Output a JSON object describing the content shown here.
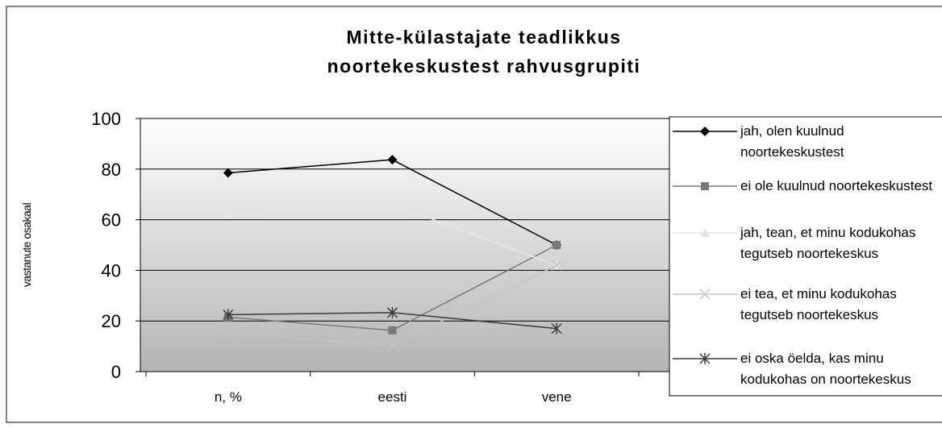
{
  "chart_data": {
    "type": "line",
    "title": "Mitte-külastajate teadlikkus noortekeskustest rahvusgrupiti",
    "y_label": "vastanute osakaal",
    "categories": [
      "n, %",
      "eesti",
      "vene"
    ],
    "ylim": [
      0,
      100
    ],
    "yticks": [
      0,
      20,
      40,
      60,
      80,
      100
    ],
    "grid": true,
    "series": [
      {
        "name": "jah, olen kuulnud noortekeskustest",
        "color": "#000000",
        "marker": "diamond",
        "values": [
          78.5,
          83.7,
          50
        ]
      },
      {
        "name": "ei ole kuulnud noortekeskustest",
        "color": "#7a7a7a",
        "marker": "square",
        "values": [
          21.5,
          16.3,
          50
        ]
      },
      {
        "name": "jah, tean, et minu kodukohas tegutseb noortekeskus",
        "color": "#e6e6e6",
        "marker": "triangle",
        "values": [
          62,
          66,
          42
        ]
      },
      {
        "name": "ei tea, et minu kodukohas tegutseb noortekeskus",
        "color": "#c4c4c4",
        "marker": "x",
        "values": [
          15,
          10.5,
          42
        ]
      },
      {
        "name": "ei oska öelda, kas minu kodukohas on noortekeskus",
        "color": "#3a3a3a",
        "marker": "star",
        "values": [
          22.5,
          23.3,
          17
        ]
      }
    ]
  }
}
